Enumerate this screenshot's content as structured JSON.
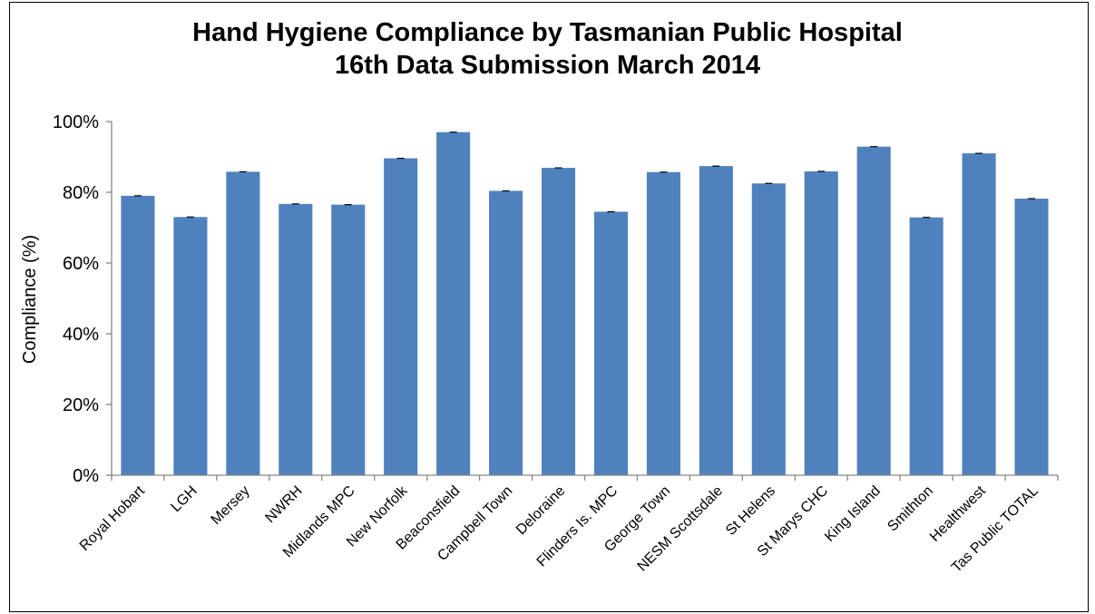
{
  "chart_data": {
    "type": "bar",
    "title_line1": "Hand Hygiene Compliance by Tasmanian Public Hospital",
    "title_line2": "16th Data Submission March 2014",
    "xlabel": "",
    "ylabel": "Compliance (%)",
    "ylim": [
      0,
      100
    ],
    "yticks": [
      "0%",
      "20%",
      "40%",
      "60%",
      "80%",
      "100%"
    ],
    "ytick_values": [
      0,
      20,
      40,
      60,
      80,
      100
    ],
    "grid": false,
    "legend": "none",
    "bar_color": "#4F81BD",
    "error_bar_color": "#000000",
    "categories": [
      "Royal Hobart",
      "LGH",
      "Mersey",
      "NWRH",
      "Midlands MPC",
      "New Norfolk",
      "Beaconsfield",
      "Campbell Town",
      "Deloraine",
      "Flinders Is. MPC",
      "George Town",
      "NESM Scottsdale",
      "St Helens",
      "St Marys CHC",
      "King Island",
      "Smithton",
      "Healthwest",
      "Tas Public TOTAL"
    ],
    "values": [
      79,
      73,
      85.8,
      76.7,
      76.5,
      89.6,
      97,
      80.4,
      86.9,
      74.5,
      85.7,
      87.4,
      82.5,
      85.9,
      92.9,
      72.9,
      91,
      78.2
    ]
  }
}
